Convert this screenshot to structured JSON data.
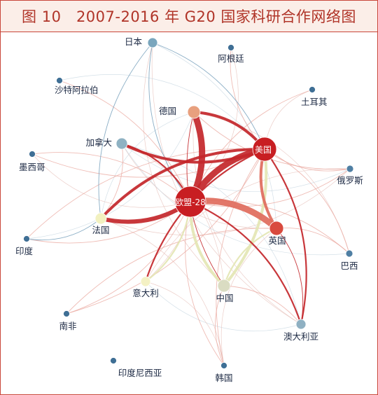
{
  "title": "图 10　2007-2016 年 G20 国家科研合作网络图",
  "colors": {
    "frame": "#c9473b",
    "title_text": "#b03428",
    "title_bg": "#fbeee8",
    "strong_edge": "#c3262a",
    "medium_edge": "#e06b5c",
    "light_edge": "#eaa59c",
    "blue_edge": "#7fa6c0",
    "yellow_edge": "#e4e6b4"
  },
  "nodes": [
    {
      "id": "eu28",
      "label": "欧盟-28",
      "color": "#c81e22",
      "label_inside": true
    },
    {
      "id": "us",
      "label": "美国",
      "color": "#c81e22",
      "label_inside": true
    },
    {
      "id": "uk",
      "label": "英国",
      "color": "#d94a3e",
      "label_inside": false
    },
    {
      "id": "de",
      "label": "德国",
      "color": "#e8a07e",
      "label_inside": false
    },
    {
      "id": "fr",
      "label": "法国",
      "color": "#f2f1c0",
      "label_inside": false
    },
    {
      "id": "cn",
      "label": "中国",
      "color": "#dadcc2",
      "label_inside": false
    },
    {
      "id": "it",
      "label": "意大利",
      "color": "#f4f1c4",
      "label_inside": false
    },
    {
      "id": "ca",
      "label": "加拿大",
      "color": "#8fb2c3",
      "label_inside": false
    },
    {
      "id": "jp",
      "label": "日本",
      "color": "#7aa6bd",
      "label_inside": false
    },
    {
      "id": "au",
      "label": "澳大利亚",
      "color": "#8fb0c2",
      "label_inside": false
    },
    {
      "id": "ru",
      "label": "俄罗斯",
      "color": "#4f7fa3",
      "label_inside": false
    },
    {
      "id": "ar",
      "label": "阿根廷",
      "color": "#3f6f95",
      "label_inside": false
    },
    {
      "id": "sa",
      "label": "沙特阿拉伯",
      "color": "#3f6f95",
      "label_inside": false
    },
    {
      "id": "tr",
      "label": "土耳其",
      "color": "#3f6f95",
      "label_inside": false
    },
    {
      "id": "mx",
      "label": "墨西哥",
      "color": "#3f6f95",
      "label_inside": false
    },
    {
      "id": "in",
      "label": "印度",
      "color": "#3f6f95",
      "label_inside": false
    },
    {
      "id": "br",
      "label": "巴西",
      "color": "#4f7fa3",
      "label_inside": false
    },
    {
      "id": "za",
      "label": "南非",
      "color": "#3f6f95",
      "label_inside": false
    },
    {
      "id": "kr",
      "label": "韩国",
      "color": "#3f6f95",
      "label_inside": false
    },
    {
      "id": "id",
      "label": "印度尼西亚",
      "color": "#3f6f95",
      "label_inside": false
    }
  ],
  "edges": [
    {
      "from": "eu28",
      "to": "us",
      "weight": 5,
      "color": "strong_edge"
    },
    {
      "from": "eu28",
      "to": "de",
      "weight": 5,
      "color": "strong_edge"
    },
    {
      "from": "eu28",
      "to": "fr",
      "weight": 4,
      "color": "strong_edge"
    },
    {
      "from": "eu28",
      "to": "uk",
      "weight": 5,
      "color": "medium_edge"
    },
    {
      "from": "us",
      "to": "de",
      "weight": 3,
      "color": "strong_edge"
    },
    {
      "from": "us",
      "to": "uk",
      "weight": 3,
      "color": "medium_edge"
    },
    {
      "from": "us",
      "to": "cn",
      "weight": 3,
      "color": "yellow_edge"
    },
    {
      "from": "us",
      "to": "ca",
      "weight": 3,
      "color": "strong_edge"
    },
    {
      "from": "us",
      "to": "fr",
      "weight": 3,
      "color": "strong_edge"
    },
    {
      "from": "eu28",
      "to": "cn",
      "weight": 3,
      "color": "yellow_edge"
    },
    {
      "from": "eu28",
      "to": "it",
      "weight": 2,
      "color": "yellow_edge"
    },
    {
      "from": "eu28",
      "to": "au",
      "weight": 2,
      "color": "strong_edge"
    },
    {
      "from": "eu28",
      "to": "ca",
      "weight": 2,
      "color": "strong_edge"
    },
    {
      "from": "eu28",
      "to": "jp",
      "weight": 1,
      "color": "blue_edge"
    },
    {
      "from": "us",
      "to": "jp",
      "weight": 1,
      "color": "blue_edge"
    },
    {
      "from": "us",
      "to": "au",
      "weight": 2,
      "color": "strong_edge"
    },
    {
      "from": "us",
      "to": "it",
      "weight": 2,
      "color": "strong_edge"
    },
    {
      "from": "uk",
      "to": "cn",
      "weight": 2,
      "color": "yellow_edge"
    },
    {
      "from": "uk",
      "to": "au",
      "weight": 1,
      "color": "strong_edge"
    },
    {
      "from": "de",
      "to": "cn",
      "weight": 1,
      "color": "strong_edge"
    },
    {
      "from": "fr",
      "to": "in",
      "weight": 1,
      "color": "blue_edge"
    },
    {
      "from": "jp",
      "to": "fr",
      "weight": 1,
      "color": "blue_edge"
    },
    {
      "from": "us",
      "to": "ru",
      "weight": 1,
      "color": "light_edge"
    },
    {
      "from": "us",
      "to": "br",
      "weight": 1,
      "color": "light_edge"
    },
    {
      "from": "us",
      "to": "kr",
      "weight": 1,
      "color": "light_edge"
    },
    {
      "from": "us",
      "to": "mx",
      "weight": 1,
      "color": "light_edge"
    },
    {
      "from": "us",
      "to": "in",
      "weight": 1,
      "color": "light_edge"
    },
    {
      "from": "us",
      "to": "za",
      "weight": 1,
      "color": "light_edge"
    },
    {
      "from": "eu28",
      "to": "ru",
      "weight": 1,
      "color": "light_edge"
    },
    {
      "from": "eu28",
      "to": "br",
      "weight": 1,
      "color": "light_edge"
    },
    {
      "from": "eu28",
      "to": "sa",
      "weight": 1,
      "color": "light_edge"
    },
    {
      "from": "eu28",
      "to": "tr",
      "weight": 1,
      "color": "light_edge"
    },
    {
      "from": "eu28",
      "to": "mx",
      "weight": 1,
      "color": "light_edge"
    },
    {
      "from": "eu28",
      "to": "za",
      "weight": 1,
      "color": "light_edge"
    },
    {
      "from": "eu28",
      "to": "kr",
      "weight": 1,
      "color": "light_edge"
    },
    {
      "from": "eu28",
      "to": "in",
      "weight": 1,
      "color": "light_edge"
    },
    {
      "from": "de",
      "to": "ru",
      "weight": 1,
      "color": "light_edge"
    },
    {
      "from": "uk",
      "to": "br",
      "weight": 1,
      "color": "light_edge"
    },
    {
      "from": "uk",
      "to": "za",
      "weight": 1,
      "color": "light_edge"
    },
    {
      "from": "cn",
      "to": "au",
      "weight": 1,
      "color": "light_edge"
    },
    {
      "from": "cn",
      "to": "kr",
      "weight": 1,
      "color": "light_edge"
    },
    {
      "from": "ca",
      "to": "fr",
      "weight": 1,
      "color": "light_edge"
    },
    {
      "from": "ar",
      "to": "us",
      "weight": 1,
      "color": "light_edge"
    }
  ]
}
